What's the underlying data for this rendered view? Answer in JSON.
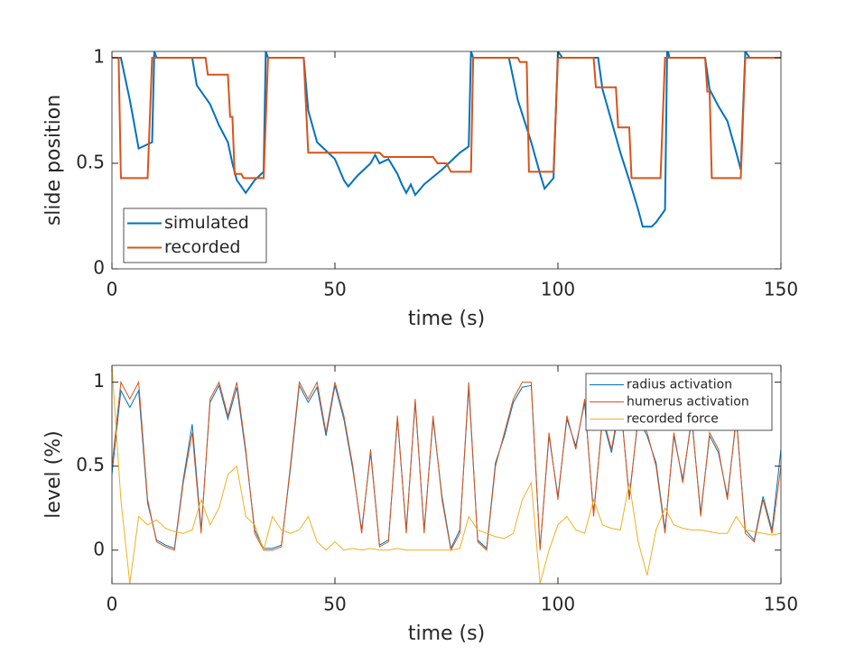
{
  "chart_data": [
    {
      "type": "line",
      "xlabel": "time (s)",
      "ylabel": "slide position",
      "xlim": [
        0,
        150
      ],
      "xticks": [
        0,
        50,
        100,
        150
      ],
      "ylim": [
        0,
        1.03
      ],
      "yticks": [
        0,
        0.5,
        1
      ],
      "legend": "lower left",
      "series": [
        {
          "name": "simulated",
          "color": "#0072bd",
          "x": [
            0,
            2,
            4,
            6,
            9,
            9.5,
            10,
            18,
            19,
            22,
            24,
            26,
            27,
            28,
            30,
            32,
            34,
            34.5,
            35,
            43,
            44,
            46,
            50,
            52,
            53,
            55,
            58,
            59,
            60,
            62,
            64,
            65,
            66,
            67,
            68,
            70,
            74,
            78,
            80,
            80.5,
            81,
            89,
            91,
            94,
            96,
            97,
            99,
            100,
            101,
            109,
            110,
            112,
            114,
            116,
            117,
            118,
            119,
            121,
            122,
            124,
            124.5,
            125,
            133,
            134,
            136,
            138,
            140,
            141,
            142,
            143,
            150
          ],
          "values": [
            1,
            1,
            0.8,
            0.57,
            0.6,
            1.03,
            1,
            1,
            0.87,
            0.78,
            0.68,
            0.6,
            0.5,
            0.42,
            0.36,
            0.42,
            0.46,
            1.03,
            1,
            1,
            0.75,
            0.6,
            0.52,
            0.42,
            0.39,
            0.44,
            0.5,
            0.54,
            0.5,
            0.52,
            0.45,
            0.4,
            0.36,
            0.4,
            0.35,
            0.4,
            0.47,
            0.55,
            0.58,
            1.03,
            1,
            1,
            0.8,
            0.6,
            0.45,
            0.38,
            0.43,
            1.03,
            1,
            1,
            0.85,
            0.7,
            0.55,
            0.42,
            0.35,
            0.28,
            0.2,
            0.2,
            0.22,
            0.28,
            1.05,
            1,
            1,
            0.85,
            0.77,
            0.7,
            0.55,
            0.47,
            1.03,
            1,
            1
          ]
        },
        {
          "name": "recorded",
          "color": "#d95319",
          "x": [
            0,
            1.5,
            2,
            8,
            9,
            21,
            21.5,
            26,
            26.5,
            27,
            27.5,
            29,
            29.5,
            34,
            35,
            43,
            44,
            60,
            61,
            72,
            73,
            75,
            76,
            80.5,
            81,
            91,
            91.5,
            93,
            93.5,
            99,
            100,
            108,
            108.5,
            113,
            113.5,
            116,
            116.5,
            123,
            124,
            133,
            133.5,
            134,
            134.5,
            141,
            142,
            150
          ],
          "values": [
            1,
            1,
            0.43,
            0.43,
            1,
            1,
            0.92,
            0.92,
            0.72,
            0.72,
            0.45,
            0.45,
            0.43,
            0.43,
            1,
            1,
            0.55,
            0.55,
            0.53,
            0.53,
            0.5,
            0.5,
            0.46,
            0.46,
            1,
            1,
            0.98,
            0.98,
            0.46,
            0.46,
            1,
            1,
            0.86,
            0.86,
            0.67,
            0.67,
            0.43,
            0.43,
            1,
            1,
            0.84,
            0.84,
            0.43,
            0.43,
            1,
            1
          ]
        }
      ]
    },
    {
      "type": "line",
      "xlabel": "time (s)",
      "ylabel": "level (%)",
      "xlim": [
        0,
        150
      ],
      "xticks": [
        0,
        50,
        100,
        150
      ],
      "ylim": [
        -0.2,
        1.1
      ],
      "yticks": [
        0,
        0.5,
        1
      ],
      "legend": "upper right",
      "x": [
        0,
        2,
        4,
        6,
        8,
        10,
        12,
        14,
        16,
        18,
        20,
        22,
        24,
        26,
        28,
        30,
        32,
        34,
        36,
        38,
        40,
        42,
        44,
        46,
        48,
        50,
        52,
        54,
        56,
        58,
        60,
        62,
        64,
        66,
        68,
        70,
        72,
        74,
        76,
        78,
        80,
        82,
        84,
        86,
        88,
        90,
        92,
        94,
        96,
        98,
        100,
        102,
        104,
        106,
        108,
        110,
        112,
        114,
        116,
        118,
        120,
        122,
        124,
        126,
        128,
        130,
        132,
        134,
        136,
        138,
        140,
        142,
        144,
        146,
        148,
        150
      ],
      "series": [
        {
          "name": "radius activation",
          "color": "#0072bd",
          "values": [
            0.45,
            0.95,
            0.85,
            0.95,
            0.28,
            0.06,
            0.03,
            0.01,
            0.42,
            0.75,
            0.12,
            0.88,
            0.98,
            0.78,
            0.97,
            0.58,
            0.12,
            0.01,
            0.01,
            0.03,
            0.48,
            0.98,
            0.88,
            0.97,
            0.68,
            0.98,
            0.78,
            0.48,
            0.12,
            0.58,
            0.03,
            0.06,
            0.78,
            0.12,
            0.88,
            0.12,
            0.78,
            0.32,
            0.01,
            0.12,
            0.97,
            0.06,
            0.01,
            0.52,
            0.68,
            0.88,
            0.97,
            0.98,
            0.01,
            0.68,
            0.32,
            0.78,
            0.62,
            0.88,
            0.22,
            0.78,
            0.58,
            0.88,
            0.32,
            0.78,
            0.68,
            0.52,
            0.12,
            0.68,
            0.42,
            0.78,
            0.22,
            0.68,
            0.58,
            0.32,
            0.78,
            0.12,
            0.06,
            0.32,
            0.12,
            0.6
          ]
        },
        {
          "name": "humerus activation",
          "color": "#d95319",
          "values": [
            0.5,
            1.0,
            0.9,
            1.0,
            0.3,
            0.05,
            0.02,
            0.0,
            0.4,
            0.7,
            0.1,
            0.9,
            1.0,
            0.8,
            1.0,
            0.6,
            0.1,
            0.0,
            0.0,
            0.02,
            0.5,
            1.0,
            0.9,
            1.0,
            0.7,
            1.0,
            0.8,
            0.5,
            0.1,
            0.6,
            0.02,
            0.05,
            0.8,
            0.1,
            0.9,
            0.1,
            0.8,
            0.3,
            0.0,
            0.1,
            1.0,
            0.05,
            0.0,
            0.5,
            0.7,
            0.9,
            1.0,
            1.0,
            0.0,
            0.7,
            0.3,
            0.8,
            0.6,
            0.9,
            0.2,
            0.8,
            0.6,
            0.9,
            0.3,
            0.8,
            0.7,
            0.5,
            0.1,
            0.7,
            0.4,
            0.8,
            0.2,
            0.7,
            0.6,
            0.3,
            0.8,
            0.1,
            0.05,
            0.3,
            0.1,
            0.5
          ]
        },
        {
          "name": "recorded force",
          "color": "#edb120",
          "values": [
            1.1,
            0.3,
            -0.2,
            0.2,
            0.15,
            0.18,
            0.13,
            0.11,
            0.1,
            0.12,
            0.3,
            0.15,
            0.25,
            0.45,
            0.5,
            0.2,
            0.15,
            0.0,
            0.2,
            0.12,
            0.1,
            0.12,
            0.2,
            0.05,
            0.0,
            0.05,
            0.0,
            0.01,
            0.0,
            0.01,
            0.0,
            0.0,
            0.01,
            0.0,
            0.0,
            0.0,
            0.0,
            0.0,
            0.0,
            0.01,
            0.2,
            0.12,
            0.1,
            0.08,
            0.07,
            0.1,
            0.3,
            0.4,
            -0.2,
            0.0,
            0.15,
            0.2,
            0.12,
            0.1,
            0.3,
            0.15,
            0.13,
            0.12,
            0.4,
            0.05,
            -0.15,
            0.12,
            0.25,
            0.15,
            0.13,
            0.12,
            0.12,
            0.11,
            0.1,
            0.1,
            0.2,
            0.12,
            0.11,
            0.1,
            0.09,
            0.1
          ]
        }
      ]
    }
  ]
}
